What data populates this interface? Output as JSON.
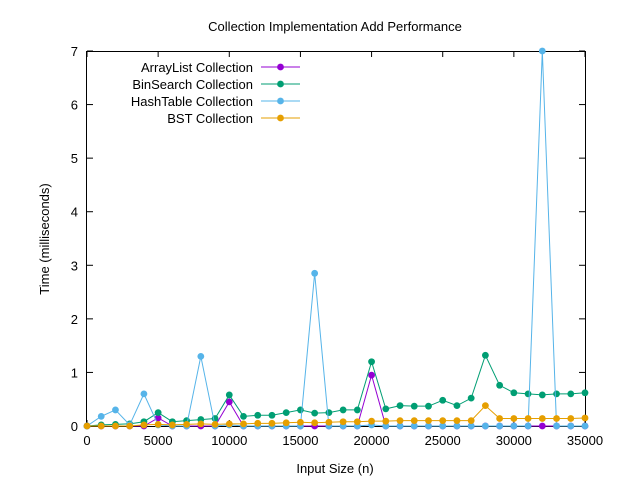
{
  "chart_data": {
    "type": "line",
    "title": "Collection Implementation Add Performance",
    "xlabel": "Input Size (n)",
    "ylabel": "Time (milliseconds)",
    "xlim": [
      0,
      35000
    ],
    "ylim": [
      0,
      7
    ],
    "xticks": [
      0,
      5000,
      10000,
      15000,
      20000,
      25000,
      30000,
      35000
    ],
    "yticks": [
      0,
      1,
      2,
      3,
      4,
      5,
      6,
      7
    ],
    "grid": false,
    "legend_position": "top-left",
    "x": [
      0,
      1000,
      2000,
      3000,
      4000,
      5000,
      6000,
      7000,
      8000,
      9000,
      10000,
      11000,
      12000,
      13000,
      14000,
      15000,
      16000,
      17000,
      18000,
      19000,
      20000,
      21000,
      22000,
      23000,
      24000,
      25000,
      26000,
      27000,
      28000,
      29000,
      30000,
      31000,
      32000,
      33000,
      34000,
      35000
    ],
    "series": [
      {
        "name": "ArrayList Collection",
        "color": "#9400d3",
        "values": [
          0,
          0,
          0,
          0,
          0,
          0.15,
          0,
          0,
          0,
          0,
          0.45,
          0,
          0,
          0,
          0,
          0,
          0,
          0,
          0,
          0,
          0.95,
          0,
          0,
          0,
          0,
          0,
          0,
          0,
          0,
          0,
          0,
          0,
          0,
          0,
          0,
          0
        ]
      },
      {
        "name": "BinSearch Collection",
        "color": "#009e73",
        "values": [
          0,
          0.02,
          0.03,
          0.04,
          0.08,
          0.25,
          0.08,
          0.1,
          0.12,
          0.14,
          0.58,
          0.18,
          0.2,
          0.2,
          0.25,
          0.3,
          0.24,
          0.25,
          0.3,
          0.3,
          1.2,
          0.32,
          0.38,
          0.37,
          0.37,
          0.48,
          0.38,
          0.52,
          1.32,
          0.76,
          0.62,
          0.6,
          0.58,
          0.6,
          0.6,
          0.62
        ]
      },
      {
        "name": "HashTable Collection",
        "color": "#56b4e9",
        "values": [
          0,
          0.18,
          0.3,
          0.02,
          0.6,
          0.02,
          0,
          0,
          1.3,
          0,
          0.02,
          0,
          0,
          0,
          0,
          0,
          2.85,
          0,
          0,
          0,
          0.02,
          0,
          0,
          0,
          0,
          0,
          0,
          0,
          0,
          0,
          0,
          0,
          7.0,
          0,
          0,
          0
        ]
      },
      {
        "name": "BST Collection",
        "color": "#e69f00",
        "values": [
          0,
          0,
          0,
          0,
          0.02,
          0.03,
          0.02,
          0.03,
          0.04,
          0.03,
          0.04,
          0.04,
          0.05,
          0.05,
          0.06,
          0.07,
          0.06,
          0.07,
          0.08,
          0.08,
          0.09,
          0.09,
          0.1,
          0.1,
          0.1,
          0.1,
          0.1,
          0.1,
          0.38,
          0.14,
          0.14,
          0.14,
          0.14,
          0.14,
          0.14,
          0.15
        ]
      }
    ]
  }
}
